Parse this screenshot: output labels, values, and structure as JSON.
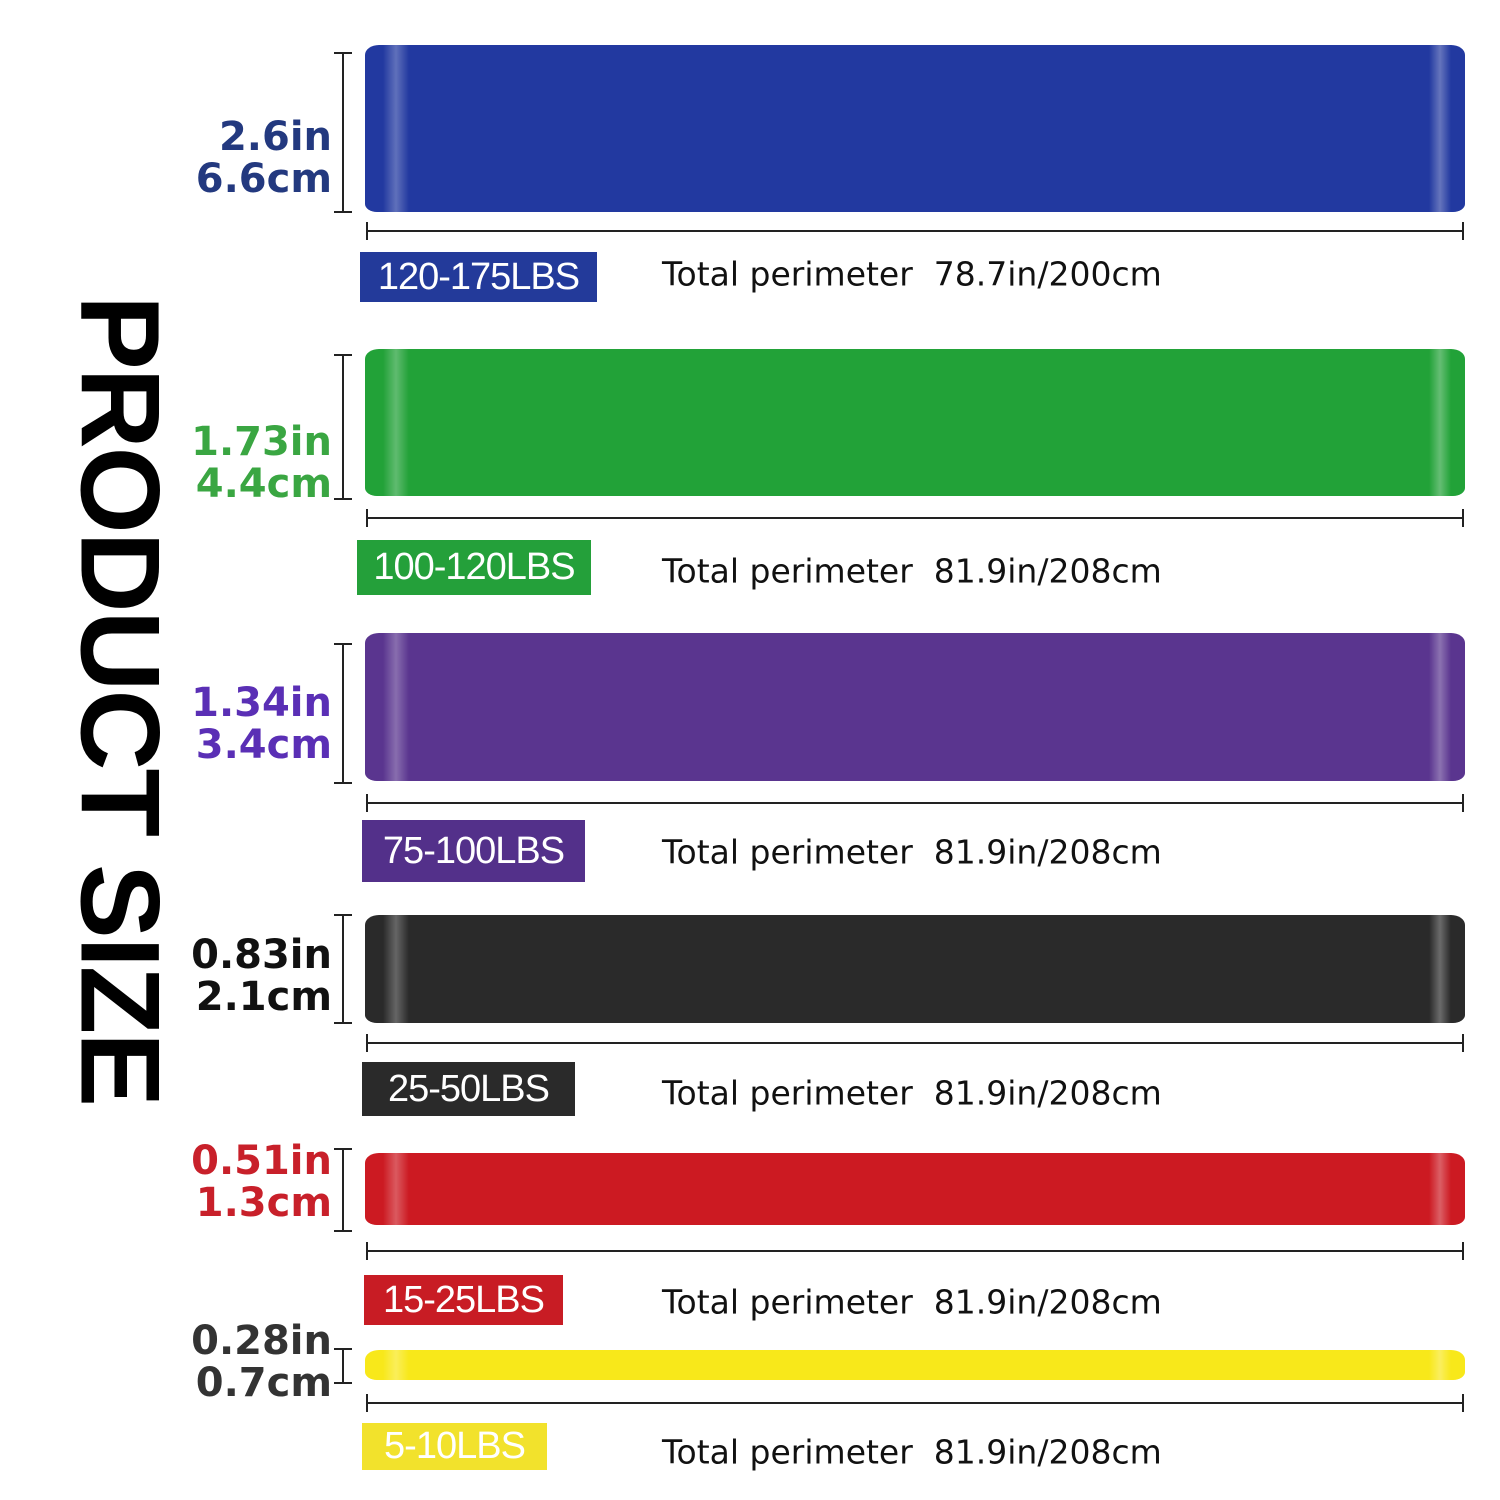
{
  "title": "PRODUCT SIZE",
  "bands": [
    {
      "resistance": "120-175LBS",
      "width_in": "2.6in",
      "width_cm": "6.6cm",
      "perimeter": "Total perimeter  78.7in/200cm",
      "color": "#2239a0",
      "label_color": "#23397f",
      "badge_color": "#233a9a"
    },
    {
      "resistance": "100-120LBS",
      "width_in": "1.73in",
      "width_cm": "4.4cm",
      "perimeter": "Total perimeter  81.9in/208cm",
      "color": "#22a238",
      "label_color": "#3aa642",
      "badge_color": "#24a03a"
    },
    {
      "resistance": "75-100LBS",
      "width_in": "1.34in",
      "width_cm": "3.4cm",
      "perimeter": "Total perimeter  81.9in/208cm",
      "color": "#5a358f",
      "label_color": "#5a2fb5",
      "badge_color": "#53308a"
    },
    {
      "resistance": "25-50LBS",
      "width_in": "0.83in",
      "width_cm": "2.1cm",
      "perimeter": "Total perimeter  81.9in/208cm",
      "color": "#2a2a2a",
      "label_color": "#111111",
      "badge_color": "#2a2a2a"
    },
    {
      "resistance": "15-25LBS",
      "width_in": "0.51in",
      "width_cm": "1.3cm",
      "perimeter": "Total perimeter  81.9in/208cm",
      "color": "#cc1a22",
      "label_color": "#c8202a",
      "badge_color": "#c81c24"
    },
    {
      "resistance": "5-10LBS",
      "width_in": "0.28in",
      "width_cm": "0.7cm",
      "perimeter": "Total perimeter  81.9in/208cm",
      "color": "#f8e81a",
      "label_color": "#333333",
      "badge_color": "#f2e22c"
    }
  ]
}
